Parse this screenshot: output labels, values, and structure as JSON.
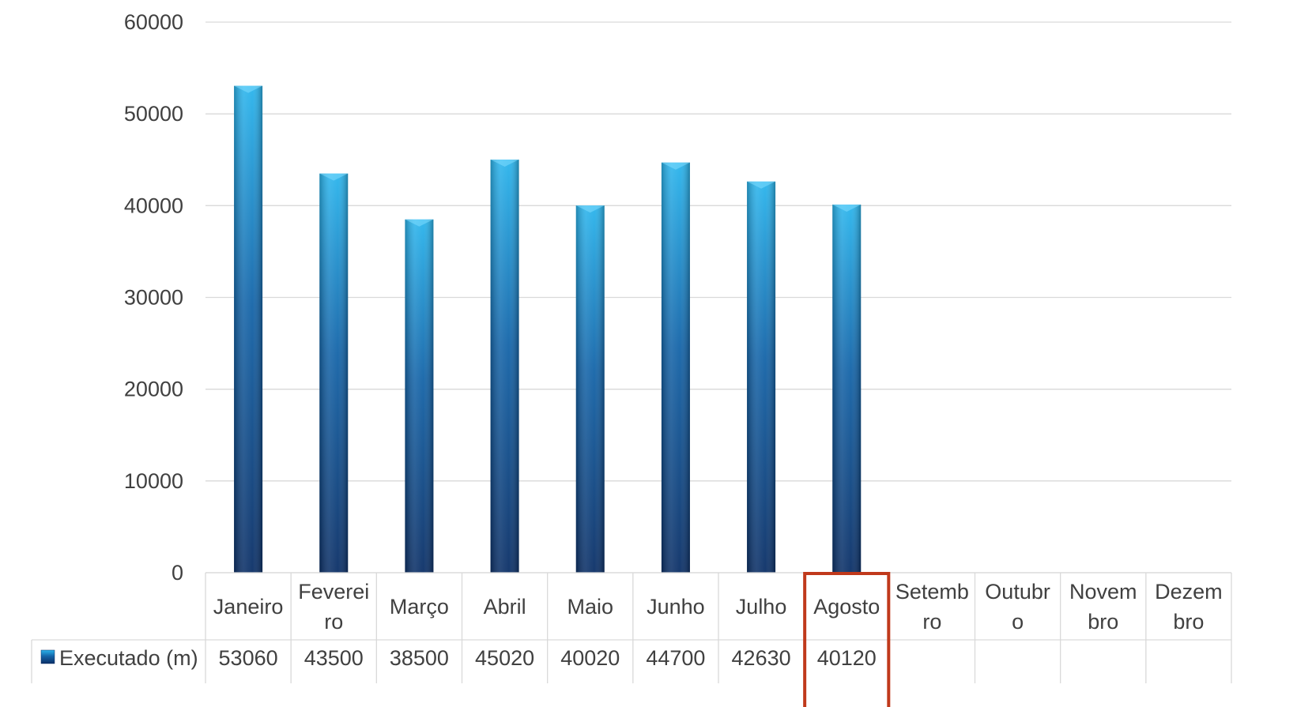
{
  "chart_data": {
    "type": "bar",
    "title": "",
    "categories": [
      [
        "Janeiro"
      ],
      [
        "Feverei",
        "ro"
      ],
      [
        "Março"
      ],
      [
        "Abril"
      ],
      [
        "Maio"
      ],
      [
        "Junho"
      ],
      [
        "Julho"
      ],
      [
        "Agosto"
      ],
      [
        "Setemb",
        "ro"
      ],
      [
        "Outubr",
        "o"
      ],
      [
        "Novem",
        "bro"
      ],
      [
        "Dezem",
        "bro"
      ]
    ],
    "series": [
      {
        "name": "Executado (m)",
        "values": [
          53060,
          43500,
          38500,
          45020,
          40020,
          44700,
          42630,
          40120,
          null,
          null,
          null,
          null
        ]
      }
    ],
    "yticks": [
      "0",
      "10000",
      "20000",
      "30000",
      "40000",
      "50000",
      "60000"
    ],
    "ylim": [
      0,
      60000
    ],
    "grid": true,
    "legend": "data-table-left",
    "highlight_index": 7,
    "colors": {
      "bar_top": "#2ab4ec",
      "bar_bottom": "#0b2f66",
      "grid": "#d9d9d9",
      "text": "#404040",
      "highlight": "#c0391b"
    }
  }
}
